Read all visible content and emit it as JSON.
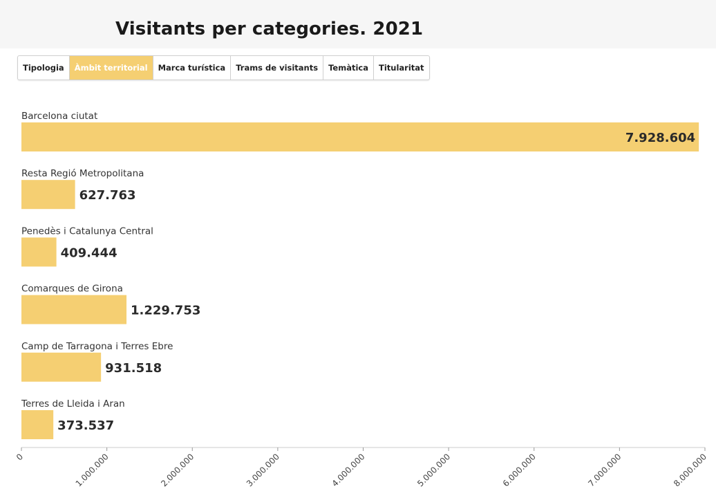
{
  "tabs": [
    {
      "label": "Tipologia",
      "active": false
    },
    {
      "label": "Àmbit territorial",
      "active": true
    },
    {
      "label": "Marca turística",
      "active": false
    },
    {
      "label": "Trams de visitants",
      "active": false
    },
    {
      "label": "Temàtica",
      "active": false
    },
    {
      "label": "Titularitat",
      "active": false
    }
  ],
  "colors": {
    "bar": "#f5cf72",
    "active_tab": "#f5cf72",
    "title_band": "#f6f6f6"
  },
  "chart_data": {
    "type": "bar",
    "orientation": "horizontal",
    "title": "Visitants per categories. 2021",
    "categories": [
      "Barcelona ciutat",
      "Resta Regió Metropolitana",
      "Penedès i Catalunya Central",
      "Comarques de Girona",
      "Camp de Tarragona i Terres Ebre",
      "Terres de Lleida i Aran"
    ],
    "values": [
      7928604,
      627763,
      409444,
      1229753,
      931518,
      373537
    ],
    "value_labels": [
      "7.928.604",
      "627.763",
      "409.444",
      "1.229.753",
      "931.518",
      "373.537"
    ],
    "xlim": [
      0,
      8000000
    ],
    "xticks": [
      0,
      1000000,
      2000000,
      3000000,
      4000000,
      5000000,
      6000000,
      7000000,
      8000000
    ],
    "xtick_labels": [
      "0",
      "1.000.000",
      "2.000.000",
      "3.000.000",
      "4.000.000",
      "5.000.000",
      "6.000.000",
      "7.000.000",
      "8.000.000"
    ],
    "grid": false,
    "legend": "none"
  }
}
